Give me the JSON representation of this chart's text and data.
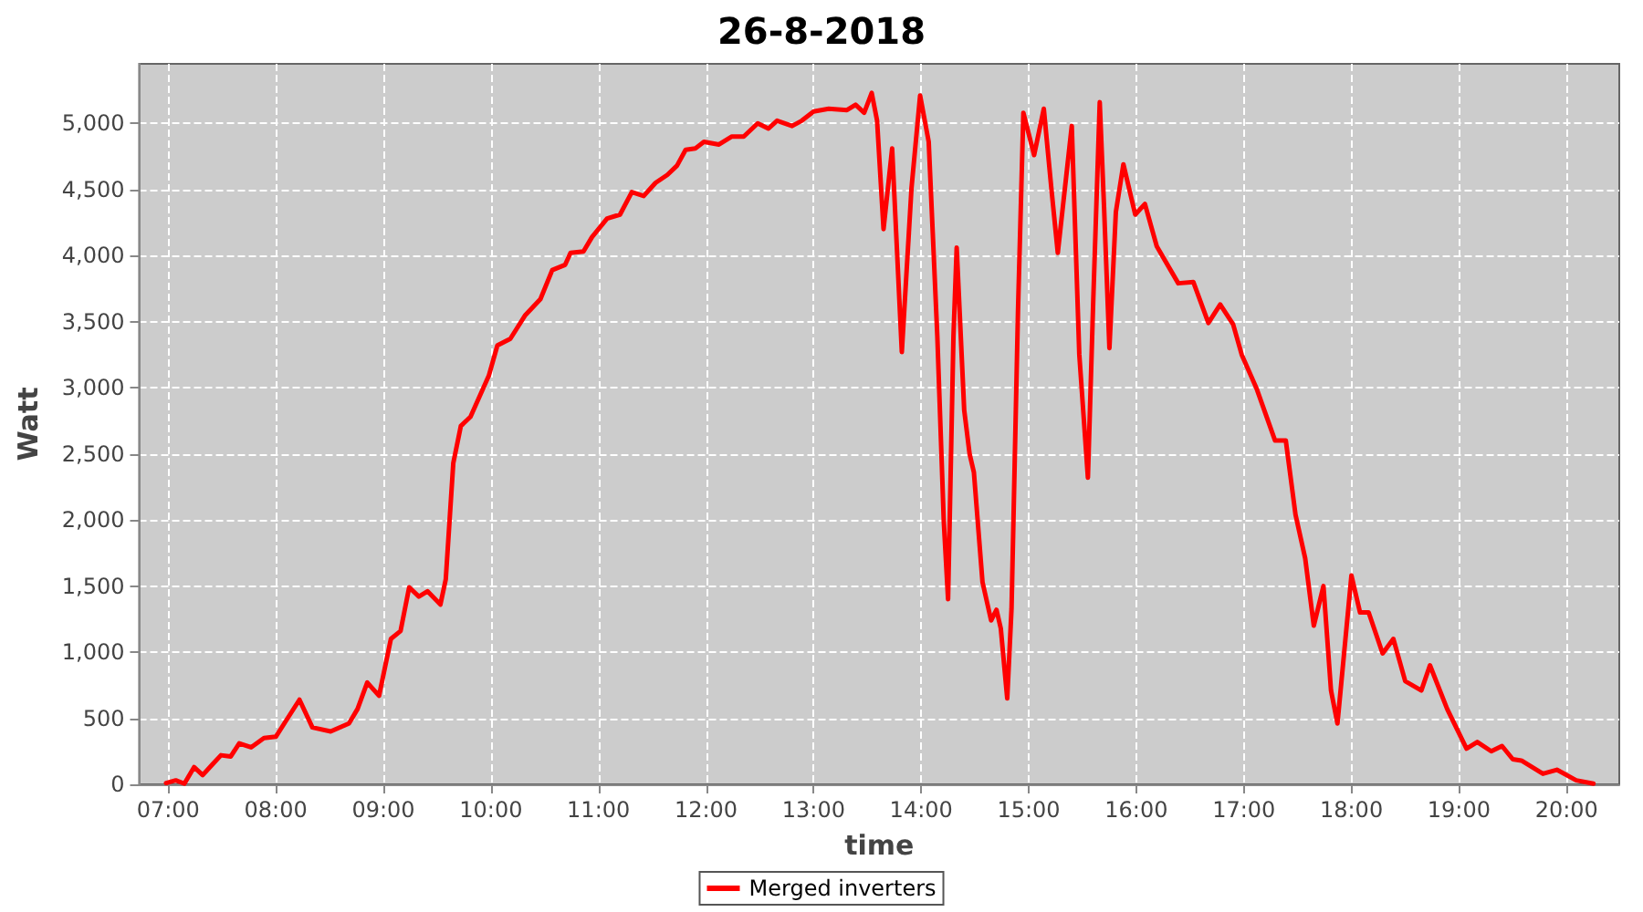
{
  "chart_data": {
    "type": "line",
    "title": "26-8-2018",
    "xlabel": "time",
    "ylabel": "Watt",
    "xlim": [
      6.73,
      20.49
    ],
    "xticks": [
      {
        "value": 7,
        "label": "07:00"
      },
      {
        "value": 8,
        "label": "08:00"
      },
      {
        "value": 9,
        "label": "09:00"
      },
      {
        "value": 10,
        "label": "10:00"
      },
      {
        "value": 11,
        "label": "11:00"
      },
      {
        "value": 12,
        "label": "12:00"
      },
      {
        "value": 13,
        "label": "13:00"
      },
      {
        "value": 14,
        "label": "14:00"
      },
      {
        "value": 15,
        "label": "15:00"
      },
      {
        "value": 16,
        "label": "16:00"
      },
      {
        "value": 17,
        "label": "17:00"
      },
      {
        "value": 18,
        "label": "18:00"
      },
      {
        "value": 19,
        "label": "19:00"
      },
      {
        "value": 20,
        "label": "20:00"
      }
    ],
    "ylim": [
      0,
      5450
    ],
    "yticks": [
      0,
      500,
      {
        "value": 1000,
        "label": "1,000"
      },
      {
        "value": 1500,
        "label": "1,500"
      },
      {
        "value": 2000,
        "label": "2,000"
      },
      {
        "value": 2500,
        "label": "2,500"
      },
      {
        "value": 3000,
        "label": "3,000"
      },
      {
        "value": 3500,
        "label": "3,500"
      },
      {
        "value": 4000,
        "label": "4,000"
      },
      {
        "value": 4500,
        "label": "4,500"
      },
      {
        "value": 5000,
        "label": "5,000"
      }
    ],
    "grid": true,
    "legend": "bottom",
    "marker": "none",
    "line_style": "solid",
    "series": [
      {
        "name": "Merged inverters",
        "color": "#ff0000",
        "x": [
          6.98,
          7.07,
          7.15,
          7.24,
          7.32,
          7.41,
          7.49,
          7.58,
          7.66,
          7.77,
          7.89,
          8.0,
          8.11,
          8.22,
          8.34,
          8.51,
          8.68,
          8.76,
          8.85,
          8.96,
          9.07,
          9.16,
          9.24,
          9.33,
          9.41,
          9.53,
          9.58,
          9.65,
          9.72,
          9.81,
          9.98,
          10.06,
          10.18,
          10.32,
          10.46,
          10.57,
          10.69,
          10.74,
          10.86,
          10.94,
          11.08,
          11.2,
          11.31,
          11.42,
          11.53,
          11.64,
          11.73,
          11.81,
          11.9,
          11.98,
          12.12,
          12.24,
          12.35,
          12.48,
          12.58,
          12.66,
          12.8,
          12.89,
          13.0,
          13.14,
          13.31,
          13.39,
          13.47,
          13.54,
          13.59,
          13.65,
          13.73,
          13.82,
          13.91,
          13.99,
          14.07,
          14.15,
          14.21,
          14.25,
          14.3,
          14.33,
          14.4,
          14.45,
          14.49,
          14.57,
          14.65,
          14.7,
          14.74,
          14.8,
          14.84,
          14.9,
          14.95,
          15.05,
          15.14,
          15.21,
          15.27,
          15.4,
          15.47,
          15.55,
          15.6,
          15.66,
          15.7,
          15.75,
          15.81,
          15.88,
          15.99,
          16.08,
          16.19,
          16.39,
          16.53,
          16.67,
          16.78,
          16.9,
          16.98,
          17.12,
          17.29,
          17.39,
          17.48,
          17.57,
          17.65,
          17.74,
          17.81,
          17.87,
          18.0,
          18.08,
          18.16,
          18.29,
          18.39,
          18.5,
          18.65,
          18.73,
          18.89,
          19.07,
          19.17,
          19.3,
          19.4,
          19.5,
          19.58,
          19.78,
          19.91,
          20.09,
          20.25
        ],
        "values": [
          10,
          30,
          5,
          130,
          70,
          150,
          220,
          210,
          310,
          280,
          350,
          360,
          500,
          640,
          430,
          400,
          460,
          570,
          770,
          670,
          1100,
          1160,
          1490,
          1420,
          1460,
          1360,
          1550,
          2430,
          2710,
          2780,
          3090,
          3320,
          3370,
          3550,
          3670,
          3890,
          3930,
          4020,
          4030,
          4140,
          4280,
          4310,
          4480,
          4450,
          4550,
          4610,
          4680,
          4800,
          4810,
          4860,
          4840,
          4900,
          4900,
          5000,
          4960,
          5020,
          4980,
          5020,
          5090,
          5110,
          5100,
          5140,
          5080,
          5230,
          5020,
          4200,
          4810,
          3270,
          4510,
          5210,
          4860,
          3390,
          1990,
          1400,
          3390,
          4060,
          2830,
          2500,
          2360,
          1530,
          1240,
          1320,
          1180,
          650,
          1330,
          3580,
          5080,
          4760,
          5110,
          4510,
          4020,
          4980,
          3250,
          2320,
          3670,
          5160,
          4370,
          3300,
          4330,
          4690,
          4310,
          4390,
          4070,
          3790,
          3800,
          3490,
          3630,
          3480,
          3250,
          2990,
          2600,
          2600,
          2040,
          1710,
          1200,
          1500,
          710,
          460,
          1580,
          1300,
          1300,
          990,
          1100,
          780,
          710,
          900,
          570,
          270,
          320,
          250,
          290,
          190,
          180,
          80,
          110,
          30,
          5
        ]
      }
    ]
  }
}
